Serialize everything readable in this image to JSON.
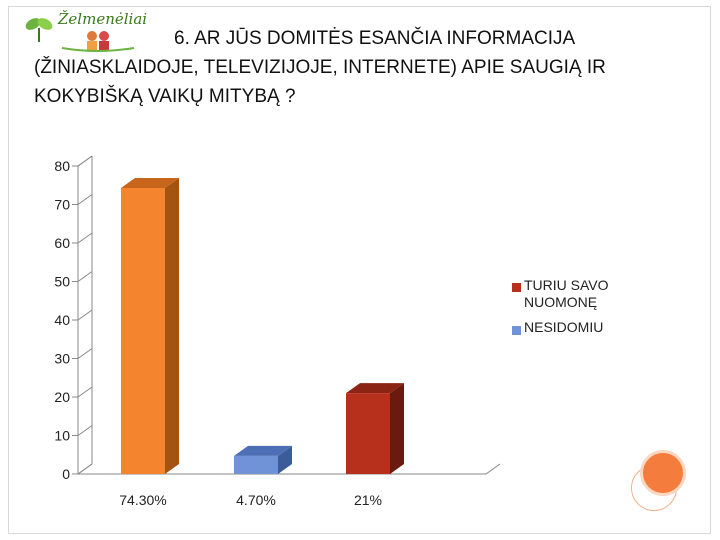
{
  "header": {
    "logo_text": "Želmenėliai",
    "title_line1": "6. Ar Jūs domitės esančia informacija",
    "title_line2": "(žiniasklaidoje, televizijoje, internete) apie saugią ir",
    "title_line3": "kokybišką vaikų mitybą ?"
  },
  "chart_data": {
    "type": "bar",
    "categories": [
      "74.30%",
      "4.70%",
      "21%"
    ],
    "values": [
      74.3,
      4.7,
      21
    ],
    "bar_colors": [
      "#f5842f",
      "#6f93d6",
      "#b7301c"
    ],
    "side_colors": [
      "#a35412",
      "#3c5b99",
      "#6a1a0e"
    ],
    "top_colors": [
      "#c8651c",
      "#4d6fb5",
      "#8c2414"
    ],
    "ylim": [
      0,
      80
    ],
    "yticks": [
      0,
      10,
      20,
      30,
      40,
      50,
      60,
      70,
      80
    ],
    "grid": false,
    "legend_position": "right",
    "legend": [
      {
        "label": "TURIU SAVO NUOMONĘ",
        "color": "#b7301c"
      },
      {
        "label": "NESIDOMIU",
        "color": "#6f93d6"
      }
    ]
  },
  "colors": {
    "accent": "#f47c3c",
    "title_text": "#111111"
  }
}
